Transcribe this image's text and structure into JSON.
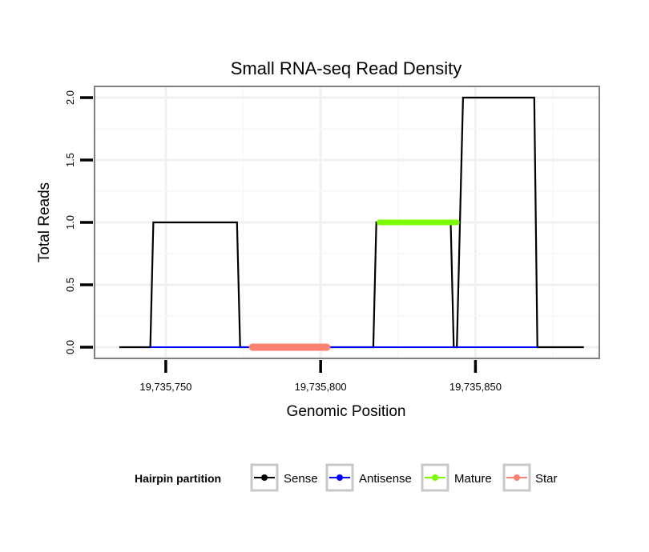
{
  "chart_data": {
    "type": "line",
    "title": "Small RNA-seq Read Density",
    "xlabel": "Genomic Position",
    "ylabel": "Total Reads",
    "xlim": [
      19735727,
      19735890
    ],
    "ylim": [
      -0.09,
      2.09
    ],
    "xticks": [
      19735750,
      19735800,
      19735850
    ],
    "xtick_labels": [
      "19,735,750",
      "19,735,800",
      "19,735,850"
    ],
    "yticks": [
      0,
      0.5,
      1,
      1.5,
      2
    ],
    "ytick_labels": [
      "0.0",
      "0.5",
      "1.0",
      "1.5",
      "2.0"
    ],
    "grid": true,
    "legend": {
      "title": "Hairpin partition",
      "placement": "bottom",
      "entries": [
        {
          "label": "Sense",
          "color": "#000000"
        },
        {
          "label": "Antisense",
          "color": "#0000ff"
        },
        {
          "label": "Mature",
          "color": "#7cfc00"
        },
        {
          "label": "Star",
          "color": "#fa8072"
        }
      ]
    },
    "series": [
      {
        "name": "Sense",
        "color": "#000000",
        "width": 2.2,
        "x": [
          19735735,
          19735745,
          19735746,
          19735773,
          19735774,
          19735817,
          19735818,
          19735842,
          19735843,
          19735844,
          19735846,
          19735869,
          19735870,
          19735885
        ],
        "y": [
          0,
          0,
          1,
          1,
          0,
          0,
          1,
          1,
          0,
          0,
          2,
          2,
          0,
          0
        ]
      },
      {
        "name": "Antisense",
        "color": "#0000ff",
        "width": 2.0,
        "x": [
          19735745,
          19735870
        ],
        "y": [
          0,
          0
        ]
      },
      {
        "name": "Mature",
        "color": "#7cfc00",
        "width": 7,
        "x": [
          19735819,
          19735844
        ],
        "y": [
          1,
          1
        ]
      },
      {
        "name": "Star",
        "color": "#fa8072",
        "width": 9,
        "x": [
          19735778,
          19735802
        ],
        "y": [
          0,
          0
        ]
      }
    ]
  }
}
